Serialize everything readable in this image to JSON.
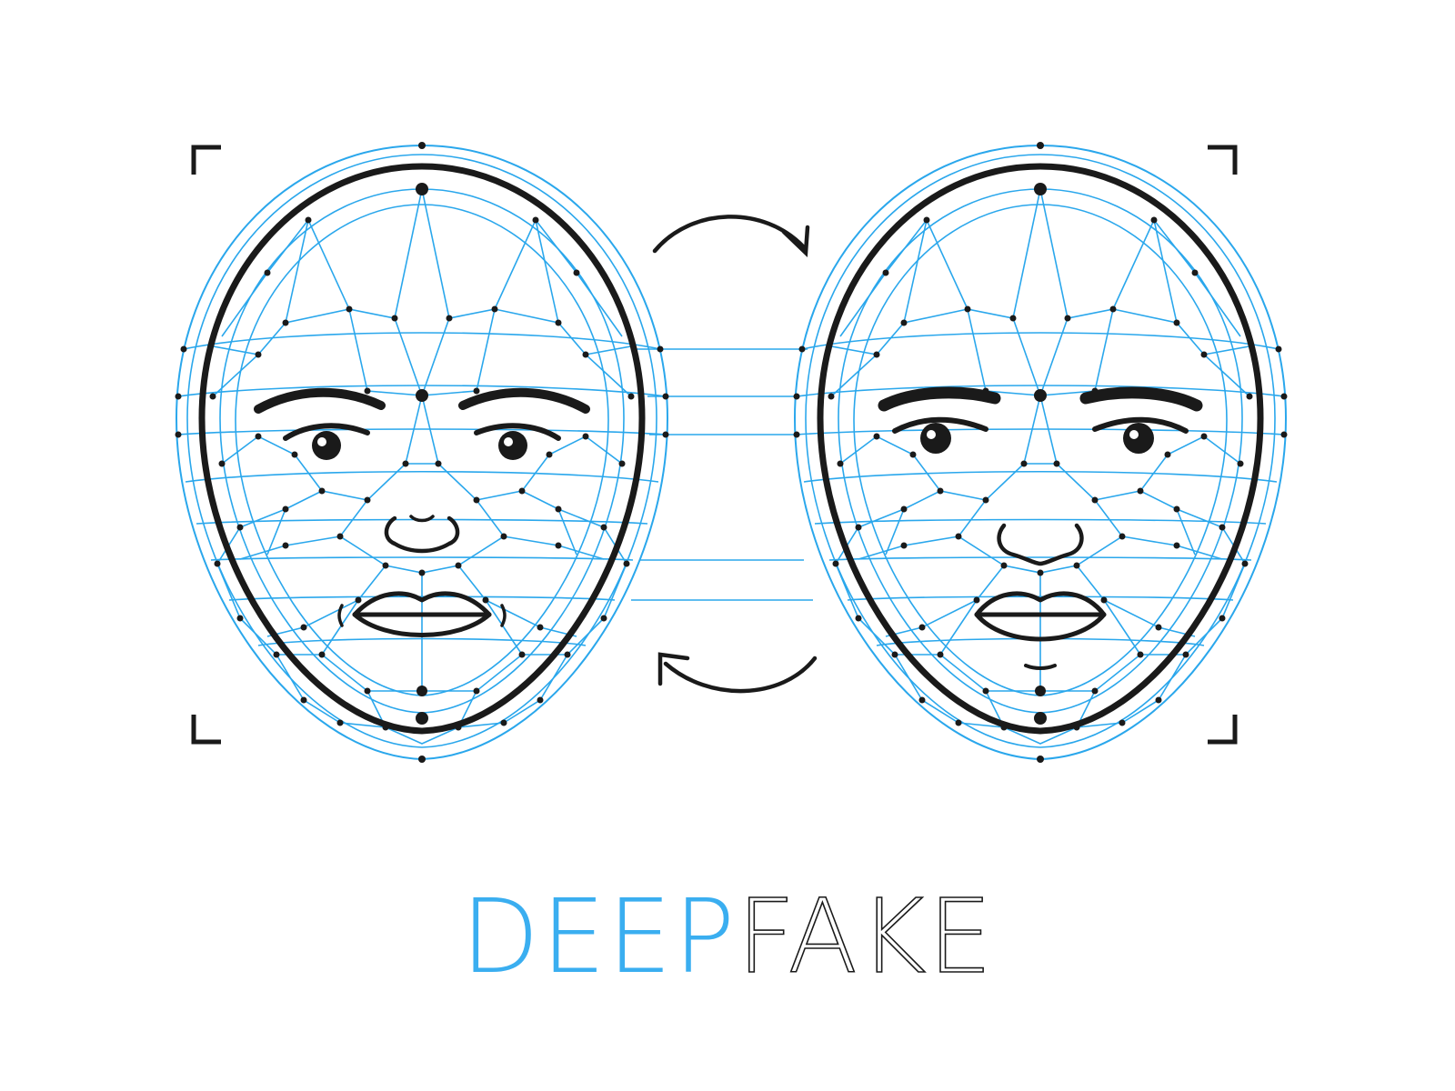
{
  "title": {
    "part_a": "DEEP",
    "part_b": "FAKE"
  },
  "colors": {
    "mesh": "#2aa7ec",
    "outline": "#1a1a1a",
    "title_accent": "#3aaef0",
    "background": "#ffffff"
  },
  "icons": {
    "swap_top": "curved-arrow-right-icon",
    "swap_bottom": "curved-arrow-left-icon",
    "frame": "corner-bracket-icon"
  }
}
